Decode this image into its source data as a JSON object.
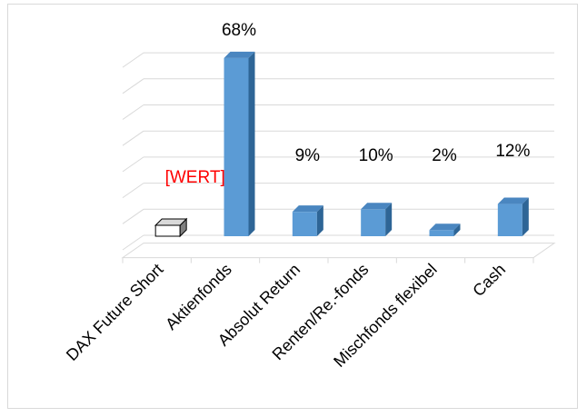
{
  "chart_data": {
    "type": "bar",
    "categories": [
      "DAX Future Short",
      "Aktienfonds",
      "Absolut Return",
      "Renten/Re.-fonds",
      "Mischfonds flexibel",
      "Cash"
    ],
    "values": [
      -1,
      68,
      9,
      10,
      2,
      12
    ],
    "data_labels": [
      "[WERT]",
      "68%",
      "9%",
      "10%",
      "2%",
      "12%"
    ],
    "title": "",
    "xlabel": "",
    "ylabel": "",
    "ylim": [
      -3,
      70
    ],
    "grid": true,
    "legend": "none",
    "colors": {
      "bar_front": "#5b9bd5",
      "bar_side": "#2e6596",
      "bar_top": "#4a86c0",
      "negative_bar_front": "#ffffff",
      "negative_bar_side": "#7f7f7f",
      "negative_bar_top": "#d9d9d9",
      "grid": "#d9d9d9",
      "label": "#000000",
      "placeholder_label": "#ff0000"
    }
  }
}
